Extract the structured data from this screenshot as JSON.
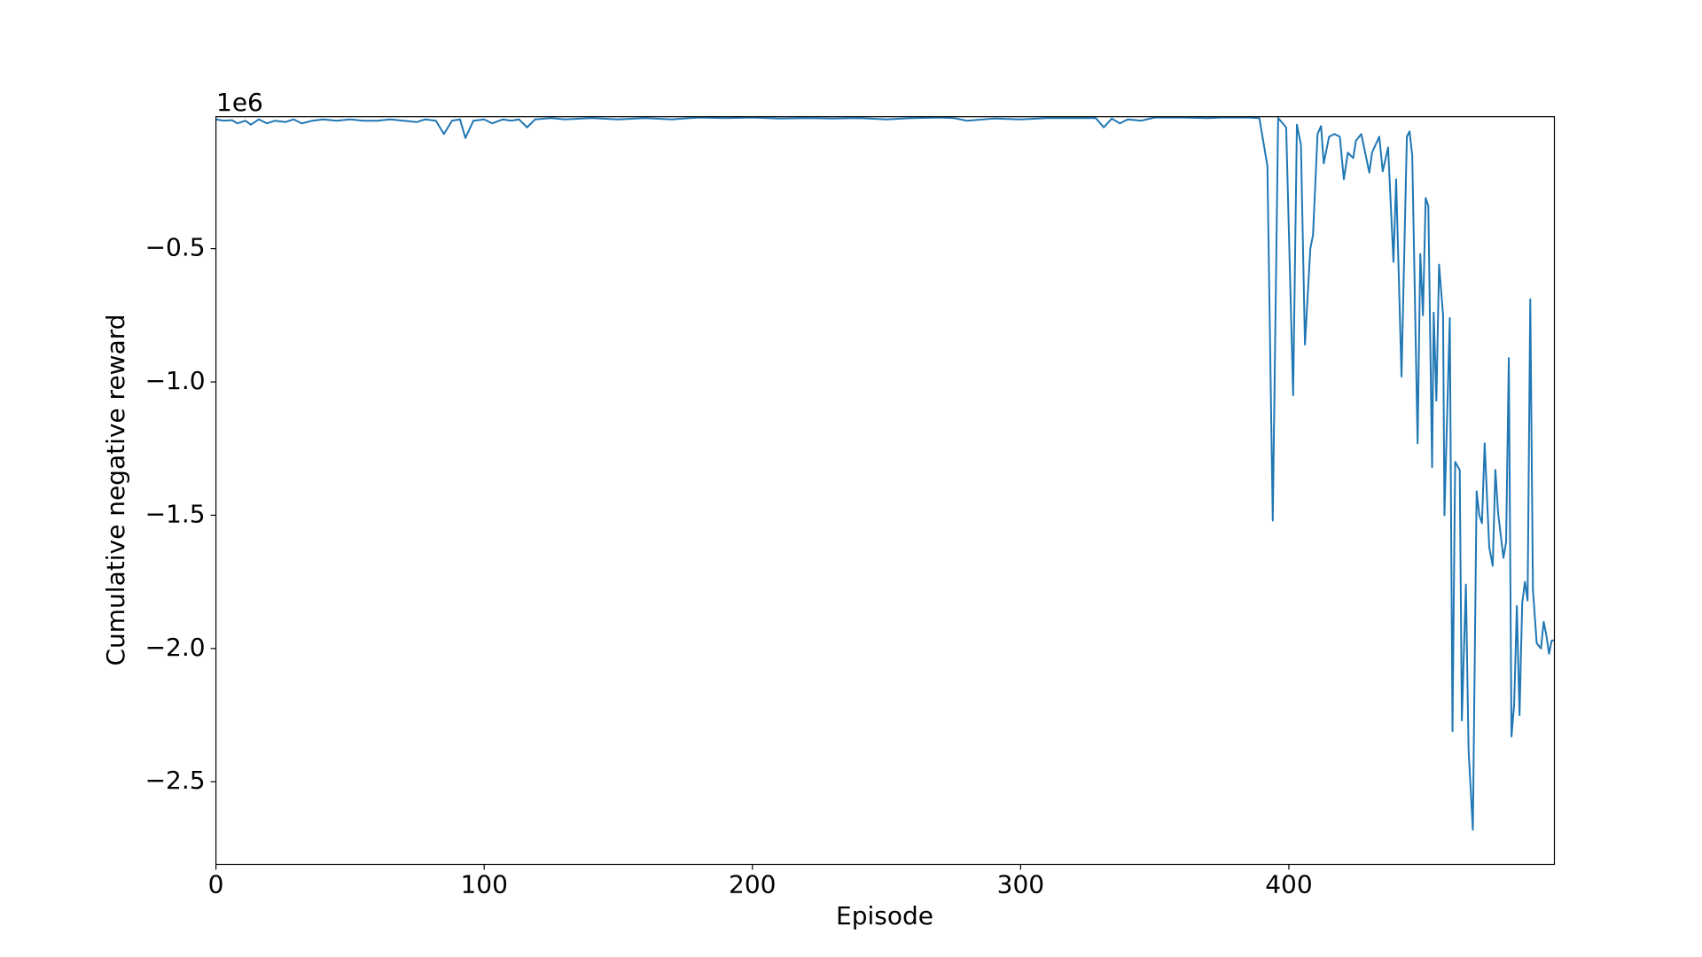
{
  "chart_data": {
    "type": "line",
    "color": "#1f77b4",
    "x_label": "Episode",
    "y_label": "Cumulative negative reward",
    "y_offset_label": "1e6",
    "xlim": [
      0,
      499
    ],
    "ylim": [
      -2.81,
      -0.005
    ],
    "xticks": [
      0,
      100,
      200,
      300,
      400
    ],
    "yticks": [
      {
        "value": -2.5,
        "label": "−2.5"
      },
      {
        "value": -2.0,
        "label": "−2.0"
      },
      {
        "value": -1.5,
        "label": "−1.5"
      },
      {
        "value": -1.0,
        "label": "−1.0"
      },
      {
        "value": -0.5,
        "label": "−0.5"
      }
    ],
    "x": [
      0,
      3,
      6,
      8,
      11,
      13,
      16,
      19,
      22,
      26,
      29,
      32,
      36,
      40,
      45,
      50,
      55,
      60,
      65,
      70,
      75,
      78,
      82,
      85,
      88,
      91,
      93,
      96,
      100,
      103,
      107,
      110,
      113,
      116,
      119,
      125,
      130,
      140,
      150,
      160,
      170,
      180,
      190,
      200,
      210,
      220,
      230,
      240,
      250,
      260,
      270,
      275,
      280,
      290,
      300,
      310,
      320,
      328,
      331,
      334,
      337,
      340,
      345,
      350,
      360,
      370,
      375,
      385,
      389,
      392,
      394,
      396,
      399,
      401.6,
      403,
      404.5,
      406,
      408,
      409,
      410.7,
      412,
      413,
      415,
      417,
      419,
      420.5,
      422,
      424,
      425,
      427,
      430,
      431,
      433.7,
      435,
      437,
      439,
      440,
      442,
      444,
      445,
      446,
      448,
      449,
      450,
      451,
      452,
      453.4,
      454,
      455,
      456,
      457.5,
      458,
      460,
      461,
      462,
      463.7,
      464.5,
      466,
      467,
      468.6,
      470,
      471,
      472,
      473,
      474.7,
      476,
      477,
      478,
      480,
      481,
      482,
      483,
      484,
      485,
      486,
      487,
      488,
      489,
      490,
      491,
      492.4,
      494,
      495,
      496,
      497,
      498,
      499
    ],
    "values": [
      -0.015,
      -0.02,
      -0.018,
      -0.03,
      -0.02,
      -0.035,
      -0.015,
      -0.03,
      -0.02,
      -0.025,
      -0.015,
      -0.03,
      -0.02,
      -0.015,
      -0.02,
      -0.015,
      -0.02,
      -0.02,
      -0.015,
      -0.02,
      -0.025,
      -0.015,
      -0.02,
      -0.07,
      -0.02,
      -0.015,
      -0.085,
      -0.02,
      -0.015,
      -0.03,
      -0.015,
      -0.02,
      -0.015,
      -0.045,
      -0.015,
      -0.01,
      -0.015,
      -0.01,
      -0.015,
      -0.01,
      -0.015,
      -0.008,
      -0.01,
      -0.008,
      -0.012,
      -0.01,
      -0.012,
      -0.01,
      -0.015,
      -0.01,
      -0.008,
      -0.01,
      -0.02,
      -0.012,
      -0.015,
      -0.01,
      -0.01,
      -0.01,
      -0.045,
      -0.012,
      -0.03,
      -0.015,
      -0.02,
      -0.008,
      -0.008,
      -0.01,
      -0.008,
      -0.008,
      -0.01,
      -0.19,
      -1.52,
      -0.01,
      -0.045,
      -1.05,
      -0.035,
      -0.11,
      -0.86,
      -0.5,
      -0.45,
      -0.07,
      -0.04,
      -0.18,
      -0.08,
      -0.07,
      -0.08,
      -0.24,
      -0.14,
      -0.16,
      -0.095,
      -0.07,
      -0.215,
      -0.14,
      -0.08,
      -0.21,
      -0.12,
      -0.55,
      -0.24,
      -0.98,
      -0.08,
      -0.06,
      -0.15,
      -1.23,
      -0.52,
      -0.75,
      -0.31,
      -0.34,
      -1.32,
      -0.74,
      -1.07,
      -0.56,
      -0.75,
      -1.5,
      -0.76,
      -2.31,
      -1.3,
      -1.33,
      -2.27,
      -1.76,
      -2.38,
      -2.68,
      -1.41,
      -1.5,
      -1.53,
      -1.23,
      -1.62,
      -1.69,
      -1.33,
      -1.49,
      -1.66,
      -1.6,
      -0.91,
      -2.33,
      -2.21,
      -1.84,
      -2.25,
      -1.83,
      -1.75,
      -1.82,
      -0.69,
      -1.78,
      -1.98,
      -2.0,
      -1.9,
      -1.95,
      -2.02,
      -1.97,
      -1.97
    ]
  }
}
